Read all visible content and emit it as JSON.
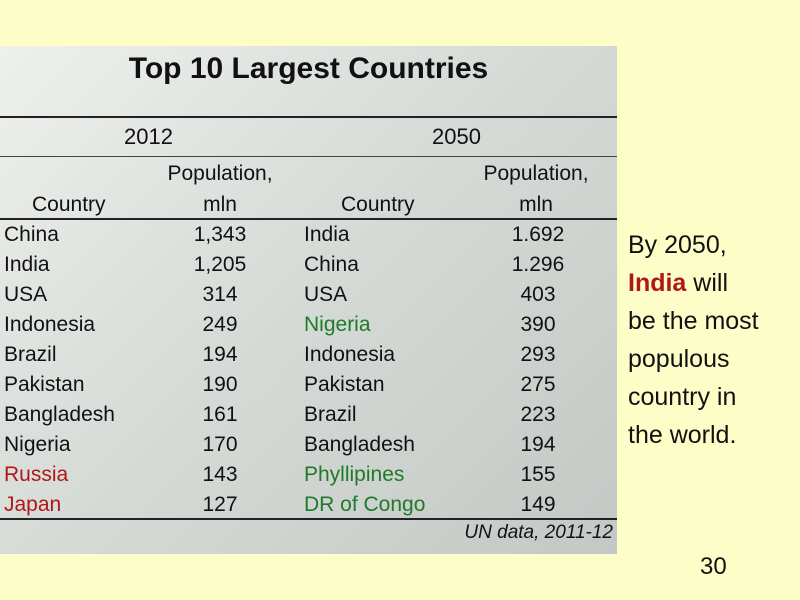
{
  "table": {
    "title": "Top 10 Largest Countries",
    "year_left": "2012",
    "year_right": "2050",
    "col_country": "Country",
    "col_population_line1": "Population,",
    "col_population_line2": "mln",
    "rows_2012": [
      {
        "country": "China",
        "population": "1,343",
        "color": "#111111"
      },
      {
        "country": "India",
        "population": "1,205",
        "color": "#111111"
      },
      {
        "country": "USA",
        "population": "314",
        "color": "#111111"
      },
      {
        "country": "Indonesia",
        "population": "249",
        "color": "#111111"
      },
      {
        "country": "Brazil",
        "population": "194",
        "color": "#111111"
      },
      {
        "country": "Pakistan",
        "population": "190",
        "color": "#111111"
      },
      {
        "country": "Bangladesh",
        "population": "161",
        "color": "#111111"
      },
      {
        "country": "Nigeria",
        "population": "170",
        "color": "#111111"
      },
      {
        "country": "Russia",
        "population": "143",
        "color": "#b01818"
      },
      {
        "country": "Japan",
        "population": "127",
        "color": "#b01818"
      }
    ],
    "rows_2050": [
      {
        "country": "India",
        "population": "1.692",
        "color": "#111111"
      },
      {
        "country": "China",
        "population": "1.296",
        "color": "#111111"
      },
      {
        "country": "USA",
        "population": "403",
        "color": "#111111"
      },
      {
        "country": "Nigeria",
        "population": "390",
        "color": "#1f7a2a"
      },
      {
        "country": "Indonesia",
        "population": "293",
        "color": "#111111"
      },
      {
        "country": "Pakistan",
        "population": "275",
        "color": "#111111"
      },
      {
        "country": "Brazil",
        "population": "223",
        "color": "#111111"
      },
      {
        "country": "Bangladesh",
        "population": "194",
        "color": "#111111"
      },
      {
        "country": "Phyllipines",
        "population": "155",
        "color": "#1f7a2a"
      },
      {
        "country": "DR of Congo",
        "population": "149",
        "color": "#1f7a2a"
      }
    ],
    "source": "UN data, 2011-12"
  },
  "side_note": {
    "line1": "By 2050,",
    "highlight": "India",
    "line2_rest": " will",
    "line3": "be the most",
    "line4": "populous",
    "line5": "country in",
    "line6": "the world."
  },
  "page_number": "30"
}
